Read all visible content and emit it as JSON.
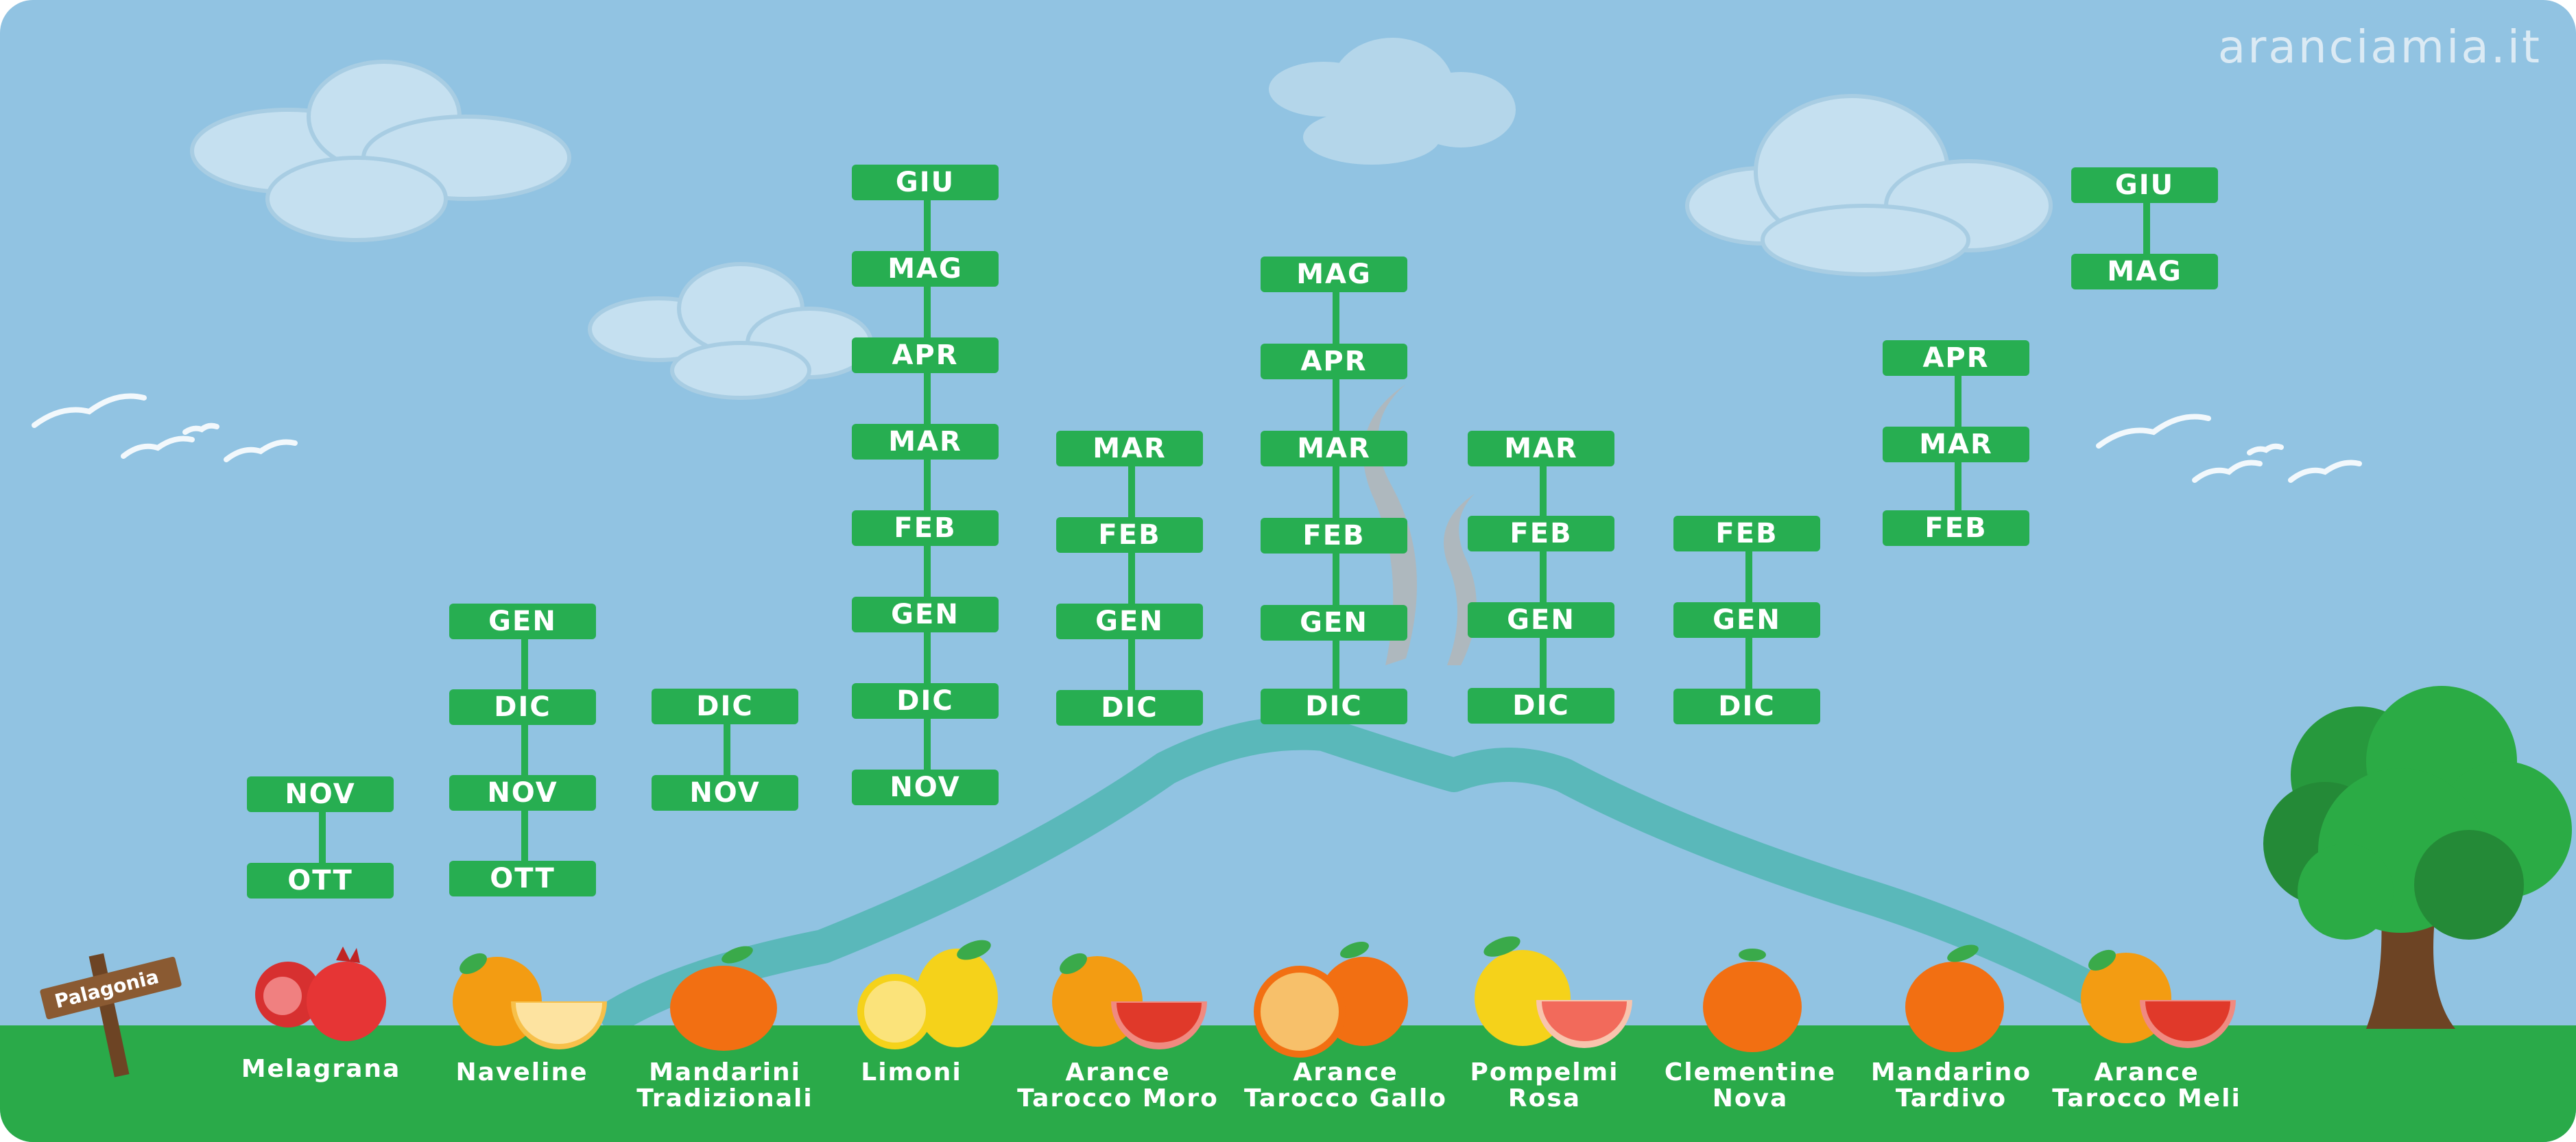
{
  "brand": "aranciamia.it",
  "sign": "Palagonia",
  "columns": [
    {
      "fruit": "Melagrana",
      "months": [
        "NOV",
        "OTT"
      ]
    },
    {
      "fruit": "Naveline",
      "months": [
        "GEN",
        "DIC",
        "NOV",
        "OTT"
      ]
    },
    {
      "fruit": "Mandarini Tradizionali",
      "months": [
        "DIC",
        "NOV"
      ]
    },
    {
      "fruit": "Limoni",
      "months": [
        "GIU",
        "MAG",
        "APR",
        "MAR",
        "FEB",
        "GEN",
        "DIC",
        "NOV"
      ]
    },
    {
      "fruit": "Arance Tarocco Moro",
      "months": [
        "MAR",
        "FEB",
        "GEN",
        "DIC"
      ]
    },
    {
      "fruit": "Arance Tarocco Gallo",
      "months": [
        "MAG",
        "APR",
        "MAR",
        "FEB",
        "GEN",
        "DIC"
      ]
    },
    {
      "fruit": "Pompelmi Rosa",
      "months": [
        "MAR",
        "FEB",
        "GEN",
        "DIC"
      ]
    },
    {
      "fruit": "Clementine Nova",
      "months": [
        "FEB",
        "GEN",
        "DIC"
      ]
    },
    {
      "fruit": "Mandarino Tardivo",
      "months": [
        "APR",
        "MAR",
        "FEB"
      ]
    },
    {
      "fruit": "Arance Tarocco Meli",
      "months": [
        "GIU",
        "MAG"
      ]
    }
  ]
}
